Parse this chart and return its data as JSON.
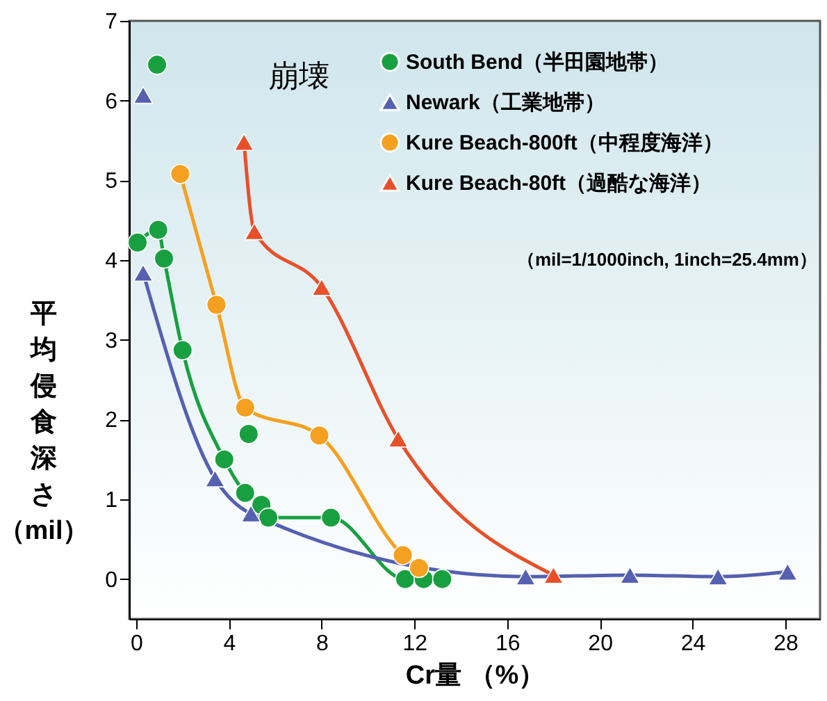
{
  "chart_data": {
    "type": "line",
    "xlabel": "Cr量 （%）",
    "ylabel": "平均侵食深さ（mil）",
    "annotations": [
      "崩壊",
      "（mil=1/1000inch, 1inch=25.4mm）"
    ],
    "xlim": [
      -0.3,
      29.5
    ],
    "ylim": [
      -0.5,
      7
    ],
    "xticks": [
      0,
      4,
      8,
      12,
      16,
      20,
      24,
      28
    ],
    "yticks": [
      0,
      1,
      2,
      3,
      4,
      5,
      6,
      7
    ],
    "legend": "top right",
    "series": [
      {
        "name": "South Bend（半田園地帯）",
        "color": "#18a040",
        "marker": "circle",
        "x": [
          0.06,
          0.95,
          1.2,
          2.0,
          3.8,
          4.7,
          5.4,
          5.7,
          8.4,
          11.6,
          12.4,
          13.2
        ],
        "values": [
          4.22,
          4.38,
          4.02,
          2.87,
          1.5,
          1.08,
          0.93,
          0.77,
          0.77,
          0,
          0,
          0
        ]
      },
      {
        "name": "Newark（工業地帯）",
        "color": "#5560b0",
        "marker": "triangle",
        "x": [
          0.3,
          3.4,
          4.95,
          16.8,
          21.3,
          25.1,
          28.1
        ],
        "values": [
          3.84,
          1.26,
          0.82,
          0.03,
          0.05,
          0.03,
          0.09
        ]
      },
      {
        "name": "Kure Beach-800ft（中程度海洋）",
        "color": "#f5a020",
        "marker": "circle",
        "x": [
          1.9,
          3.46,
          4.7,
          7.9,
          11.5,
          12.2
        ],
        "values": [
          5.08,
          3.44,
          2.15,
          1.8,
          0.3,
          0.14
        ]
      },
      {
        "name": "Kure Beach-80ft（過酷な海洋）",
        "color": "#e8502a",
        "marker": "triangle",
        "x": [
          4.65,
          5.1,
          8.0,
          11.3,
          18.0
        ],
        "values": [
          5.48,
          4.36,
          3.66,
          1.76,
          0.05
        ]
      },
      {
        "type": "scatter",
        "color": "#18a040",
        "marker": "circle",
        "x": [
          0.9,
          4.85
        ],
        "values": [
          6.45,
          1.82
        ]
      },
      {
        "type": "scatter",
        "color": "#5560b0",
        "marker": "triangle",
        "x": [
          0.3
        ],
        "values": [
          6.07
        ]
      }
    ]
  }
}
